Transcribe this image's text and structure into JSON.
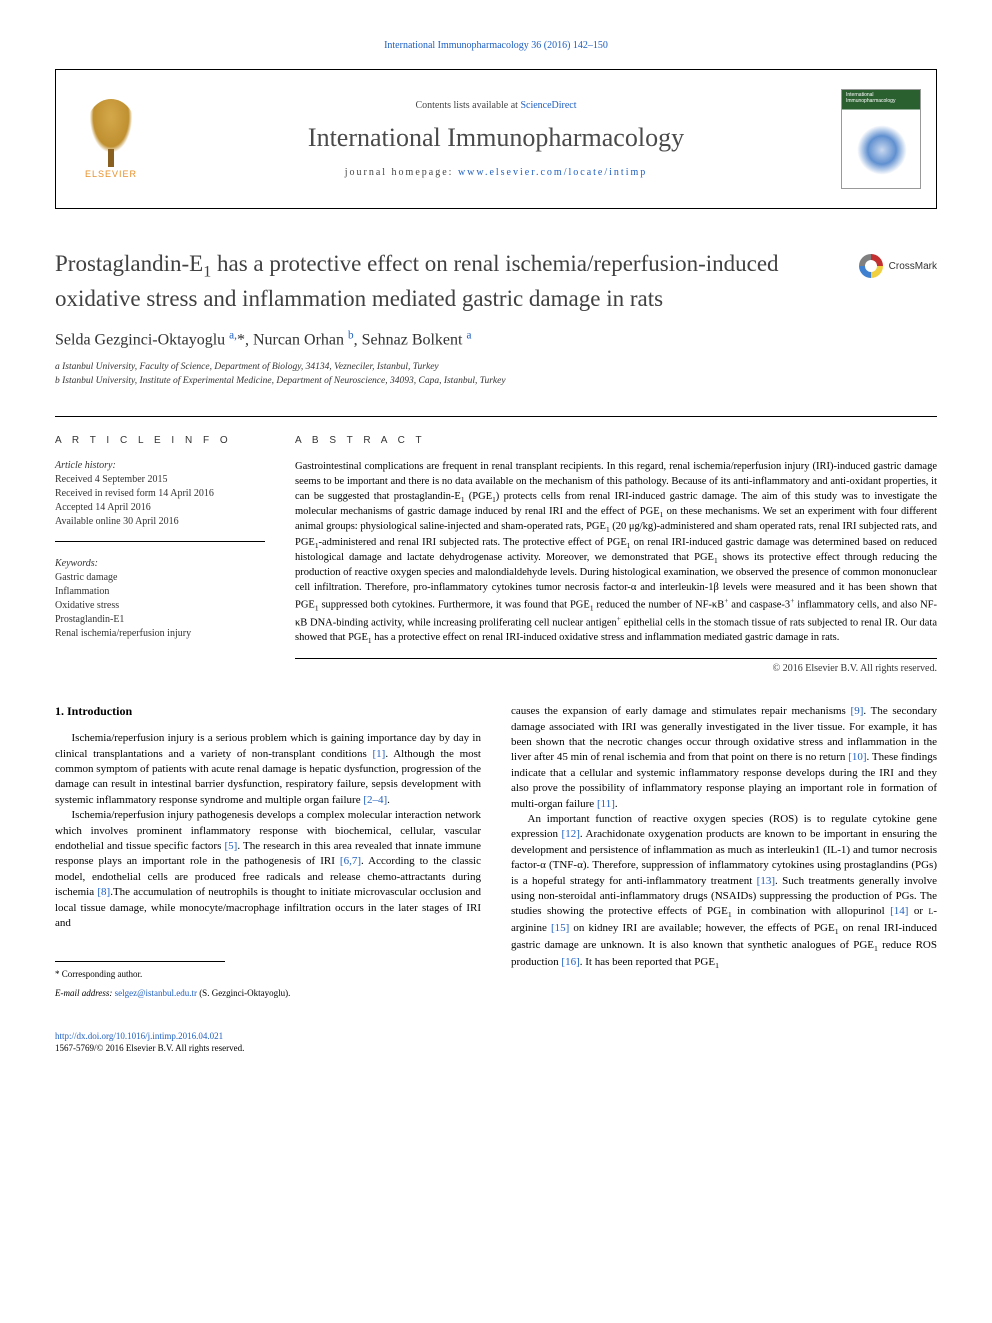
{
  "journal": {
    "citation_line": "International Immunopharmacology 36 (2016) 142–150",
    "contents_line_prefix": "Contents lists available at ",
    "contents_line_link": "ScienceDirect",
    "title": "International Immunopharmacology",
    "homepage_prefix": "journal homepage: ",
    "homepage_url": "www.elsevier.com/locate/intimp",
    "elsevier_label": "ELSEVIER",
    "cover_label": "International Immunopharmacology"
  },
  "crossmark": {
    "label": "CrossMark"
  },
  "article": {
    "title_html": "Prostaglandin-E<span class=\"sub\">1</span> has a protective effect on renal ischemia/reperfusion-induced oxidative stress and inflammation mediated gastric damage in rats",
    "authors_html": "Selda Gezginci-Oktayoglu <a class=\"author-link\" href=\"#\"><span class=\"sup\">a,</span></a>*, Nurcan Orhan <a class=\"author-link\" href=\"#\"><span class=\"sup\">b</span></a>, Sehnaz Bolkent <a class=\"author-link\" href=\"#\"><span class=\"sup\">a</span></a>",
    "affiliations": [
      "a  Istanbul University, Faculty of Science, Department of Biology, 34134, Vezneciler, Istanbul, Turkey",
      "b  Istanbul University, Institute of Experimental Medicine, Department of Neuroscience, 34093, Capa, Istanbul, Turkey"
    ]
  },
  "article_info": {
    "heading": "A R T I C L E   I N F O",
    "history_label": "Article history:",
    "history": [
      "Received 4 September 2015",
      "Received in revised form 14 April 2016",
      "Accepted 14 April 2016",
      "Available online 30 April 2016"
    ],
    "keywords_label": "Keywords:",
    "keywords": [
      "Gastric damage",
      "Inflammation",
      "Oxidative stress",
      "Prostaglandin-E1",
      "Renal ischemia/reperfusion injury"
    ]
  },
  "abstract": {
    "heading": "A B S T R A C T",
    "text_html": "Gastrointestinal complications are frequent in renal transplant recipients. In this regard, renal ischemia/reperfusion injury (IRI)-induced gastric damage seems to be important and there is no data available on the mechanism of this pathology. Because of its anti-inflammatory and anti-oxidant properties, it can be suggested that prostaglandin-E<span class=\"sub\">1</span> (PGE<span class=\"sub\">1</span>) protects cells from renal IRI-induced gastric damage. The aim of this study was to investigate the molecular mechanisms of gastric damage induced by renal IRI and the effect of PGE<span class=\"sub\">1</span> on these mechanisms. We set an experiment with four different animal groups: physiological saline-injected and sham-operated rats, PGE<span class=\"sub\">1</span> (20 μg/kg)-administered and sham operated rats, renal IRI subjected rats, and PGE<span class=\"sub\">1</span>-administered and renal IRI subjected rats. The protective effect of PGE<span class=\"sub\">1</span> on renal IRI-induced gastric damage was determined based on reduced histological damage and lactate dehydrogenase activity. Moreover, we demonstrated that PGE<span class=\"sub\">1</span> shows its protective effect through reducing the production of reactive oxygen species and malondialdehyde levels. During histological examination, we observed the presence of common mononuclear cell infiltration. Therefore, pro-inflammatory cytokines tumor necrosis factor-α and interleukin-1β levels were measured and it has been shown that PGE<span class=\"sub\">1</span> suppressed both cytokines. Furthermore, it was found that PGE<span class=\"sub\">1</span> reduced the number of NF-κB<span class=\"sup\">+</span> and caspase-3<span class=\"sup\">+</span> inflammatory cells, and also NF-κB DNA-binding activity, while increasing proliferating cell nuclear antigen<span class=\"sup\">+</span> epithelial cells in the stomach tissue of rats subjected to renal IR. Our data showed that PGE<span class=\"sub\">1</span> has a protective effect on renal IRI-induced oxidative stress and inflammation mediated gastric damage in rats.",
    "copyright": "© 2016 Elsevier B.V. All rights reserved."
  },
  "body": {
    "section_heading": "1. Introduction",
    "col1_html": "<p>Ischemia/reperfusion injury is a serious problem which is gaining importance day by day in clinical transplantations and a variety of non-transplant conditions <a class=\"ref-link\" href=\"#\">[1]</a>. Although the most common symptom of patients with acute renal damage is hepatic dysfunction, progression of the damage can result in intestinal barrier dysfunction, respiratory failure, sepsis development with systemic inflammatory response syndrome and multiple organ failure <a class=\"ref-link\" href=\"#\">[2–4]</a>.</p><p>Ischemia/reperfusion injury pathogenesis develops a complex molecular interaction network which involves prominent inflammatory response with biochemical, cellular, vascular endothelial and tissue specific factors <a class=\"ref-link\" href=\"#\">[5]</a>. The research in this area revealed that innate immune response plays an important role in the pathogenesis of IRI <a class=\"ref-link\" href=\"#\">[6,7]</a>. According to the classic model, endothelial cells are produced free radicals and release chemo-attractants during ischemia <a class=\"ref-link\" href=\"#\">[8]</a>.The accumulation of neutrophils is thought to initiate microvascular occlusion and local tissue damage, while monocyte/macrophage infiltration occurs in the later stages of IRI and</p>",
    "col2_html": "<p style=\"text-indent:0\">causes the expansion of early damage and stimulates repair mechanisms <a class=\"ref-link\" href=\"#\">[9]</a>. The secondary damage associated with IRI was generally investigated in the liver tissue. For example, it has been shown that the necrotic changes occur through oxidative stress and inflammation in the liver after 45 min of renal ischemia and from that point on there is no return <a class=\"ref-link\" href=\"#\">[10]</a>. These findings indicate that a cellular and systemic inflammatory response develops during the IRI and they also prove the possibility of inflammatory response playing an important role in formation of multi-organ failure <a class=\"ref-link\" href=\"#\">[11]</a>.</p><p>An important function of reactive oxygen species (ROS) is to regulate cytokine gene expression <a class=\"ref-link\" href=\"#\">[12]</a>. Arachidonate oxygenation products are known to be important in ensuring the development and persistence of inflammation as much as interleukin1 (IL-1) and tumor necrosis factor-α (TNF-α). Therefore, suppression of inflammatory cytokines using prostaglandins (PGs) is a hopeful strategy for anti-inflammatory treatment <a class=\"ref-link\" href=\"#\">[13]</a>. Such treatments generally involve using non-steroidal anti-inflammatory drugs (NSAIDs) suppressing the production of PGs. The studies showing the protective effects of PGE<span class=\"sub\">1</span> in combination with allopurinol <a class=\"ref-link\" href=\"#\">[14]</a> or <span class=\"small-caps\">l</span>-arginine <a class=\"ref-link\" href=\"#\">[15]</a> on kidney IRI are available; however, the effects of PGE<span class=\"sub\">1</span> on renal IRI-induced gastric damage are unknown. It is also known that synthetic analogues of PGE<span class=\"sub\">1</span> reduce ROS production <a class=\"ref-link\" href=\"#\">[16]</a>. It has been reported that PGE<span class=\"sub\">1</span></p>"
  },
  "footnote": {
    "corresponding": "* Corresponding author.",
    "email_label": "E-mail address:",
    "email": "selgez@istanbul.edu.tr",
    "email_suffix": "(S. Gezginci-Oktayoglu)."
  },
  "footer": {
    "doi": "http://dx.doi.org/10.1016/j.intimp.2016.04.021",
    "issn_line": "1567-5769/© 2016 Elsevier B.V. All rights reserved."
  },
  "colors": {
    "link": "#2060c0",
    "text": "#000000",
    "heading_gray": "#404040",
    "elsevier_orange": "#e8902a"
  }
}
